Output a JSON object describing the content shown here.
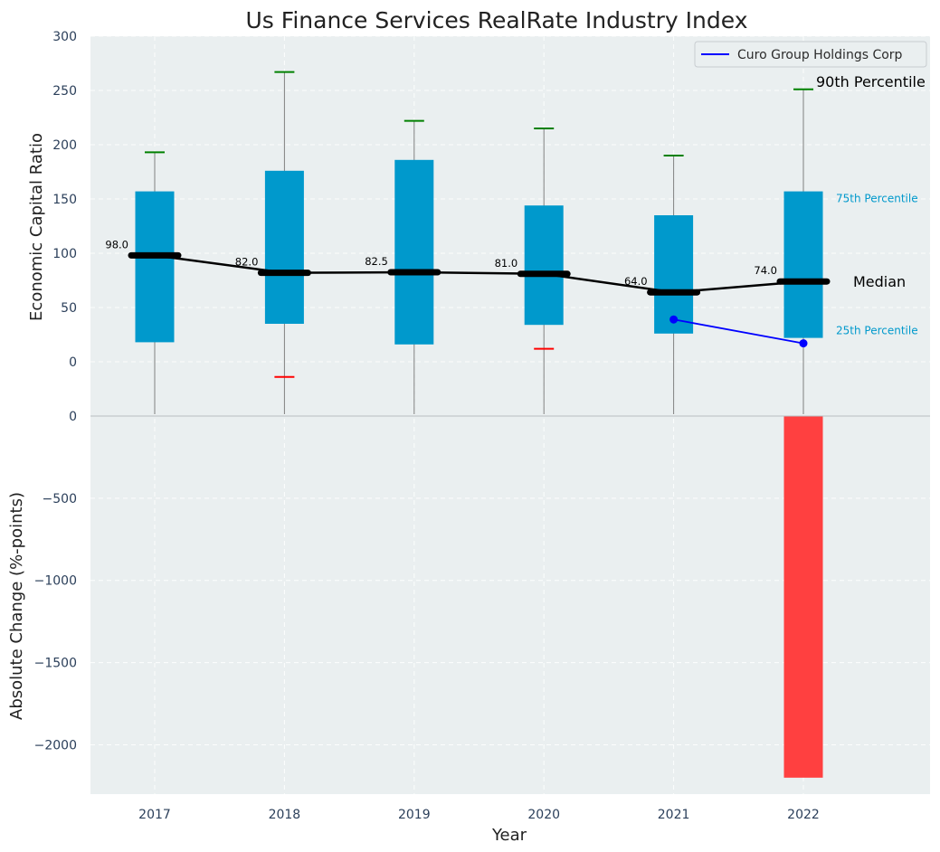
{
  "chart_data": {
    "title": "Us Finance Services RealRate Industry Index",
    "xlabel": "Year",
    "top_panel": {
      "type": "box",
      "ylabel": "Economic Capital Ratio",
      "ylim": [
        0,
        300
      ],
      "yticks": [
        0,
        50,
        100,
        150,
        200,
        250,
        300
      ],
      "categories": [
        "2017",
        "2018",
        "2019",
        "2020",
        "2021",
        "2022"
      ],
      "p25": [
        18,
        35,
        16,
        34,
        26,
        22
      ],
      "p75": [
        157,
        176,
        186,
        144,
        135,
        157
      ],
      "median": [
        98.0,
        82.0,
        82.5,
        81.0,
        64.0,
        74.0
      ],
      "median_labels": [
        "98.0",
        "82.0",
        "82.5",
        "81.0",
        "64.0",
        "74.0"
      ],
      "p90": [
        193,
        267,
        222,
        215,
        190,
        251
      ],
      "p10": [
        null,
        -14,
        null,
        12,
        null,
        null
      ],
      "company": {
        "name": "Curo Group Holdings Corp",
        "color": "#0000ff",
        "x": [
          "2021",
          "2022"
        ],
        "values": [
          39,
          17
        ]
      },
      "annotations": {
        "p90": "90th Percentile",
        "p75": "75th Percentile",
        "median": "Median",
        "p25": "25th Percentile"
      },
      "legend_placement": "top-right",
      "grid": true
    },
    "bottom_panel": {
      "type": "bar",
      "ylabel": "Absolute Change (%-points)",
      "ylim": [
        -2300,
        0
      ],
      "yticks": [
        0,
        -500,
        -1000,
        -1500,
        -2000
      ],
      "ytick_labels": [
        "0",
        "−500",
        "−1000",
        "−1500",
        "−2000"
      ],
      "categories": [
        "2017",
        "2018",
        "2019",
        "2020",
        "2021",
        "2022"
      ],
      "values": [
        0,
        0,
        0,
        0,
        0,
        -2200
      ],
      "grid": true
    },
    "colors": {
      "box": "#0099cc",
      "median": "#000000",
      "whisker_high": "#008000",
      "whisker_low": "#ff0000",
      "whisker_line": "#808080",
      "negative_bar": "#ff4040",
      "panel_bg": "#eaeff0"
    }
  }
}
